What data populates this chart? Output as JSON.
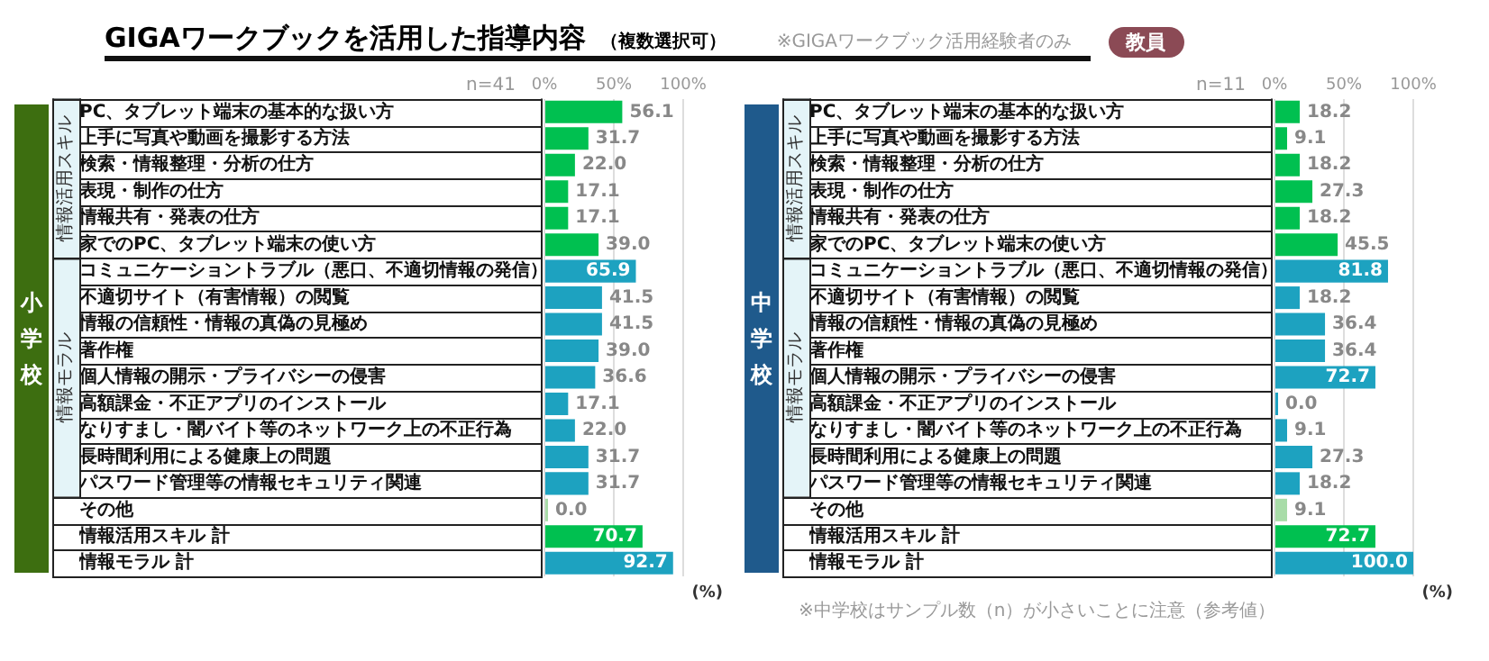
{
  "chart_data": [
    {
      "type": "bar",
      "orientation": "horizontal",
      "title": "GIGAワークブックを活用した指導内容",
      "subtitle": "（複数選択可）",
      "ylabel": "小学校",
      "annotations": [
        "情報活用スキル",
        "情報モラル",
        "n=41",
        "(%)",
        "※GIGAワークブック活用経験者のみ",
        "教員"
      ],
      "categories": [
        "PC、タブレット端末の基本的な扱い方",
        "上手に写真や動画を撮影する方法",
        "検索・情報整理・分析の仕方",
        "表現・制作の仕方",
        "情報共有・発表の仕方",
        "家でのPC、タブレット端末の使い方",
        "コミュニケーショントラブル（悪口、不適切情報の発信）",
        "不適切サイト（有害情報）の閲覧",
        "情報の信頼性・情報の真偽の見極め",
        "著作権",
        "個人情報の開示・プライバシーの侵害",
        "高額課金・不正アプリのインストール",
        "なりすまし・闇バイト等のネットワーク上の不正行為",
        "長時間利用による健康上の問題",
        "パスワード管理等の情報セキュリティ関連",
        "その他",
        "情報活用スキル 計",
        "情報モラル 計"
      ],
      "values": [
        56.1,
        31.7,
        22.0,
        17.1,
        17.1,
        39.0,
        65.9,
        41.5,
        41.5,
        39.0,
        36.6,
        17.1,
        22.0,
        31.7,
        31.7,
        0.0,
        70.7,
        92.7
      ],
      "value_labels": [
        "56.1",
        "31.7",
        "22.0",
        "17.1",
        "17.1",
        "39.0",
        "65.9",
        "41.5",
        "41.5",
        "39.0",
        "36.6",
        "17.1",
        "22.0",
        "31.7",
        "31.7",
        "0.0",
        "70.7",
        "92.7"
      ],
      "colors": [
        "#00c050",
        "#00c050",
        "#00c050",
        "#00c050",
        "#00c050",
        "#00c050",
        "#1da2c0",
        "#1da2c0",
        "#1da2c0",
        "#1da2c0",
        "#1da2c0",
        "#1da2c0",
        "#1da2c0",
        "#1da2c0",
        "#1da2c0",
        "#a8dca8",
        "#00c050",
        "#1da2c0"
      ],
      "xlim": [
        0,
        100
      ],
      "xticks": [
        {
          "value": 0,
          "label": "0%"
        },
        {
          "value": 50,
          "label": "50%"
        },
        {
          "value": 100,
          "label": "100%"
        }
      ],
      "grid": "x"
    },
    {
      "type": "bar",
      "orientation": "horizontal",
      "ylabel": "中学校",
      "annotations": [
        "情報活用スキル",
        "情報モラル",
        "n=11",
        "(%)",
        "※中学校はサンプル数（n）が小さいことに注意（参考値）"
      ],
      "categories": [
        "PC、タブレット端末の基本的な扱い方",
        "上手に写真や動画を撮影する方法",
        "検索・情報整理・分析の仕方",
        "表現・制作の仕方",
        "情報共有・発表の仕方",
        "家でのPC、タブレット端末の使い方",
        "コミュニケーショントラブル（悪口、不適切情報の発信）",
        "不適切サイト（有害情報）の閲覧",
        "情報の信頼性・情報の真偽の見極め",
        "著作権",
        "個人情報の開示・プライバシーの侵害",
        "高額課金・不正アプリのインストール",
        "なりすまし・闇バイト等のネットワーク上の不正行為",
        "長時間利用による健康上の問題",
        "パスワード管理等の情報セキュリティ関連",
        "その他",
        "情報活用スキル 計",
        "情報モラル 計"
      ],
      "values": [
        18.2,
        9.1,
        18.2,
        27.3,
        18.2,
        45.5,
        81.8,
        18.2,
        36.4,
        36.4,
        72.7,
        0.0,
        9.1,
        27.3,
        18.2,
        9.1,
        72.7,
        100.0
      ],
      "value_labels": [
        "18.2",
        "9.1",
        "18.2",
        "27.3",
        "18.2",
        "45.5",
        "81.8",
        "18.2",
        "36.4",
        "36.4",
        "72.7",
        "0.0",
        "9.1",
        "27.3",
        "18.2",
        "9.1",
        "72.7",
        "100.0"
      ],
      "colors": [
        "#00c050",
        "#00c050",
        "#00c050",
        "#00c050",
        "#00c050",
        "#00c050",
        "#1da2c0",
        "#1da2c0",
        "#1da2c0",
        "#1da2c0",
        "#1da2c0",
        "#1da2c0",
        "#1da2c0",
        "#1da2c0",
        "#1da2c0",
        "#a8dca8",
        "#00c050",
        "#1da2c0"
      ],
      "xlim": [
        0,
        100
      ],
      "xticks": [
        {
          "value": 0,
          "label": "0%"
        },
        {
          "value": 50,
          "label": "50%"
        },
        {
          "value": 100,
          "label": "100%"
        }
      ],
      "grid": "x"
    }
  ]
}
